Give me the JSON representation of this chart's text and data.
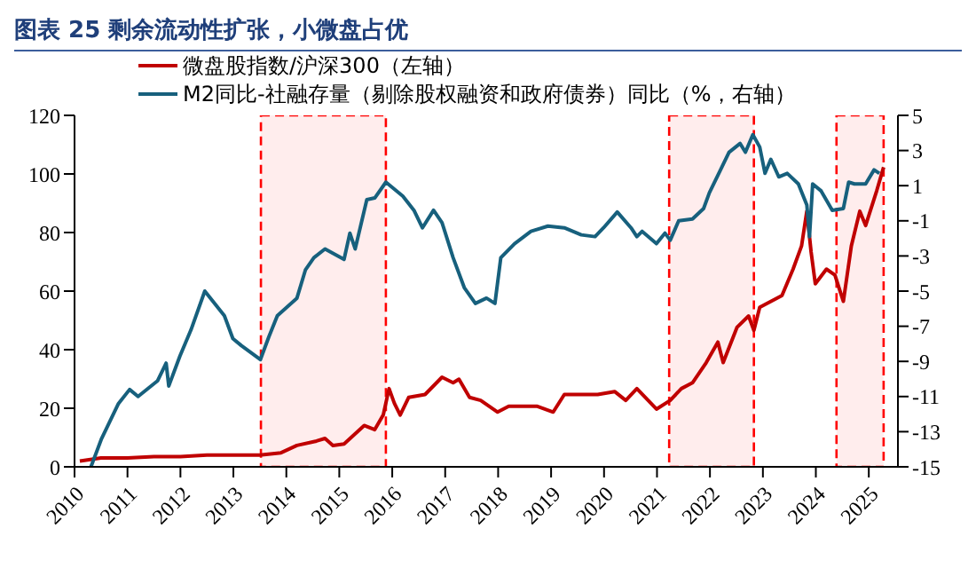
{
  "chart_data": {
    "type": "line",
    "title": "图表 25   剩余流动性扩张，小微盘占优",
    "legend": "top left",
    "grid": false,
    "marker": "none",
    "line_style": "solid",
    "xlim": [
      2010,
      2025.55
    ],
    "xticks": [
      2010,
      2011,
      2012,
      2013,
      2014,
      2015,
      2016,
      2017,
      2018,
      2019,
      2020,
      2021,
      2022,
      2023,
      2024,
      2025
    ],
    "ylim": [
      0,
      120
    ],
    "yticks": [
      0,
      20,
      40,
      60,
      80,
      100,
      120
    ],
    "y2lim": [
      -15,
      5
    ],
    "y2ticks": [
      -15,
      -13,
      -11,
      -9,
      -7,
      -5,
      -3,
      -1,
      1,
      3,
      5
    ],
    "bands": [
      {
        "axis": "x",
        "from": 2013.52,
        "to": 2015.88,
        "color": "#ff0000"
      },
      {
        "axis": "x",
        "from": 2021.23,
        "to": 2022.83,
        "color": "#ff0000"
      },
      {
        "axis": "x",
        "from": 2024.39,
        "to": 2025.28,
        "color": "#ff0000"
      }
    ],
    "series": [
      {
        "name": "微盘股指数/沪深300（左轴）",
        "color": "#c00000",
        "x": [
          2010.1,
          2010.5,
          2011,
          2011.5,
          2012,
          2012.5,
          2013,
          2013.5,
          2013.9,
          2014.2,
          2014.57,
          2014.73,
          2014.88,
          2015.09,
          2015.47,
          2015.67,
          2015.83,
          2015.94,
          2016.04,
          2016.15,
          2016.31,
          2016.62,
          2016.94,
          2017.15,
          2017.26,
          2017.46,
          2017.67,
          2017.99,
          2018.2,
          2018.73,
          2019.04,
          2019.25,
          2019.88,
          2020.2,
          2020.41,
          2020.62,
          2020.99,
          2021.25,
          2021.46,
          2021.67,
          2021.93,
          2022.15,
          2022.25,
          2022.51,
          2022.73,
          2022.83,
          2022.94,
          2023.36,
          2023.57,
          2023.73,
          2023.83,
          2023.91,
          2023.99,
          2024.2,
          2024.36,
          2024.52,
          2024.67,
          2024.83,
          2024.94,
          2025.15,
          2025.28
        ],
        "values": [
          2,
          3,
          3,
          3.5,
          3.5,
          4,
          4,
          4,
          4.8,
          7.3,
          8.8,
          9.7,
          7.3,
          7.8,
          14.1,
          12.7,
          17.7,
          26.7,
          21.7,
          17.7,
          23.7,
          24.7,
          30.6,
          28.7,
          29.9,
          23.7,
          22.7,
          18.7,
          20.7,
          20.7,
          18.7,
          24.7,
          24.7,
          25.7,
          22.7,
          26.7,
          19.7,
          22.7,
          26.7,
          28.7,
          35.6,
          42.6,
          35.6,
          47.6,
          51.5,
          46.6,
          54.5,
          58.5,
          67.5,
          75.4,
          87.3,
          73.4,
          62.5,
          67.5,
          65.5,
          56.5,
          75.4,
          87.3,
          82.4,
          94.3,
          102.3
        ]
      },
      {
        "name": "M2同比-社融存量（剔除股权融资和政府债券）同比（%，右轴）",
        "color": "#17607d",
        "axis": "y2",
        "x": [
          2010.31,
          2010.51,
          2010.83,
          2011.04,
          2011.2,
          2011.57,
          2011.73,
          2011.78,
          2011.99,
          2012.2,
          2012.46,
          2012.83,
          2012.99,
          2013.15,
          2013.51,
          2013.67,
          2013.83,
          2014.2,
          2014.36,
          2014.52,
          2014.73,
          2015.09,
          2015.2,
          2015.3,
          2015.52,
          2015.67,
          2015.88,
          2016.2,
          2016.41,
          2016.57,
          2016.78,
          2016.94,
          2017.15,
          2017.36,
          2017.57,
          2017.78,
          2017.94,
          2018.05,
          2018.31,
          2018.62,
          2018.94,
          2019.25,
          2019.57,
          2019.83,
          2019.99,
          2020.25,
          2020.51,
          2020.62,
          2020.72,
          2020.99,
          2021.15,
          2021.25,
          2021.41,
          2021.67,
          2021.88,
          2021.99,
          2022.2,
          2022.36,
          2022.57,
          2022.67,
          2022.81,
          2022.94,
          2023.04,
          2023.15,
          2023.3,
          2023.46,
          2023.67,
          2023.83,
          2023.88,
          2023.94,
          2024.1,
          2024.31,
          2024.52,
          2024.62,
          2024.73,
          2024.94,
          2025.1,
          2025.2
        ],
        "values": [
          -15,
          -13.4,
          -11.4,
          -10.6,
          -11,
          -10.1,
          -9.1,
          -10.4,
          -8.7,
          -7.2,
          -5,
          -6.4,
          -7.7,
          -8.1,
          -8.9,
          -7.6,
          -6.4,
          -5.4,
          -3.8,
          -3.1,
          -2.6,
          -3.2,
          -1.7,
          -2.6,
          0.2,
          0.3,
          1.2,
          0.4,
          -0.4,
          -1.4,
          -0.4,
          -1.1,
          -3.1,
          -4.8,
          -5.7,
          -5.4,
          -5.7,
          -3.1,
          -2.3,
          -1.6,
          -1.3,
          -1.4,
          -1.8,
          -1.9,
          -1.4,
          -0.5,
          -1.4,
          -1.9,
          -1.6,
          -2.3,
          -1.7,
          -2.1,
          -1,
          -0.9,
          -0.3,
          0.6,
          1.9,
          2.9,
          3.4,
          2.9,
          3.9,
          3.2,
          1.7,
          2.5,
          1.5,
          1.7,
          1.1,
          -0.1,
          -1.9,
          1.1,
          0.7,
          -0.4,
          -0.3,
          1.2,
          1.1,
          1.1,
          1.9,
          1.7
        ]
      }
    ]
  }
}
